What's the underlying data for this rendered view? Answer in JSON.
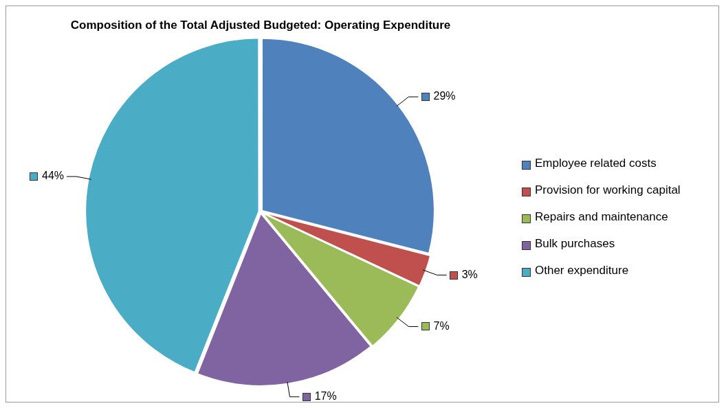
{
  "chart_data": {
    "type": "pie",
    "title": "Composition of the Total Adjusted Budgeted: Operating Expenditure",
    "categories": [
      "Employee related costs",
      "Provision for working capital",
      "Repairs and maintenance",
      "Bulk purchases",
      "Other expenditure"
    ],
    "values": [
      29,
      3,
      7,
      17,
      44
    ],
    "colors": [
      "#4f81bd",
      "#c0504d",
      "#9bbb59",
      "#8064a2",
      "#4bacc6"
    ],
    "value_labels": [
      "29%",
      "3%",
      "7%",
      "17%",
      "44%"
    ],
    "legend": "right"
  }
}
